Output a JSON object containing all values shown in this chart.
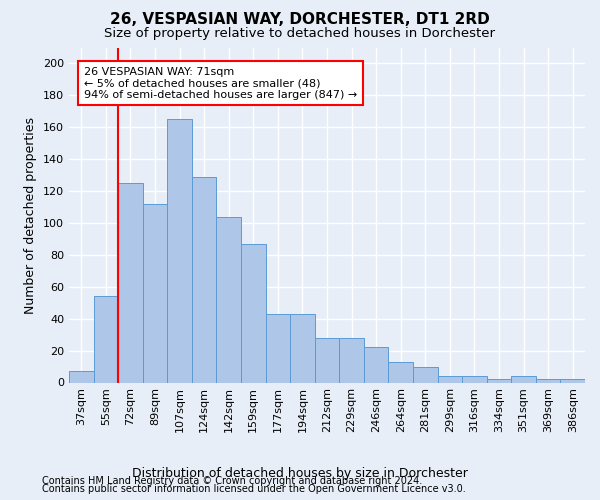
{
  "title": "26, VESPASIAN WAY, DORCHESTER, DT1 2RD",
  "subtitle": "Size of property relative to detached houses in Dorchester",
  "xlabel": "Distribution of detached houses by size in Dorchester",
  "ylabel": "Number of detached properties",
  "bar_color": "#aec6e8",
  "bar_edge_color": "#5b9bd5",
  "categories": [
    "37sqm",
    "55sqm",
    "72sqm",
    "89sqm",
    "107sqm",
    "124sqm",
    "142sqm",
    "159sqm",
    "177sqm",
    "194sqm",
    "212sqm",
    "229sqm",
    "246sqm",
    "264sqm",
    "281sqm",
    "299sqm",
    "316sqm",
    "334sqm",
    "351sqm",
    "369sqm",
    "386sqm"
  ],
  "values": [
    7,
    54,
    125,
    112,
    165,
    129,
    104,
    87,
    43,
    43,
    28,
    28,
    22,
    13,
    10,
    4,
    4,
    2,
    4,
    2,
    2
  ],
  "ylim": [
    0,
    210
  ],
  "yticks": [
    0,
    20,
    40,
    60,
    80,
    100,
    120,
    140,
    160,
    180,
    200
  ],
  "vline_x": 1.5,
  "annotation_text": "26 VESPASIAN WAY: 71sqm\n← 5% of detached houses are smaller (48)\n94% of semi-detached houses are larger (847) →",
  "annotation_box_color": "white",
  "annotation_box_edge_color": "red",
  "footer_line1": "Contains HM Land Registry data © Crown copyright and database right 2024.",
  "footer_line2": "Contains public sector information licensed under the Open Government Licence v3.0.",
  "background_color": "#e8eef7",
  "grid_color": "white",
  "title_fontsize": 11,
  "subtitle_fontsize": 9.5,
  "xlabel_fontsize": 9,
  "ylabel_fontsize": 9,
  "footer_fontsize": 7,
  "tick_fontsize": 8,
  "annot_fontsize": 8
}
